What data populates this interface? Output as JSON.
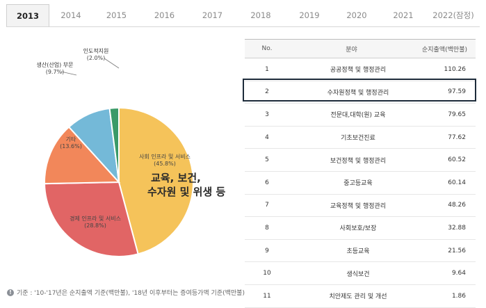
{
  "tabs": [
    {
      "label": "2013",
      "active": true
    },
    {
      "label": "2014",
      "active": false
    },
    {
      "label": "2015",
      "active": false
    },
    {
      "label": "2016",
      "active": false
    },
    {
      "label": "2017",
      "active": false
    },
    {
      "label": "2018",
      "active": false
    },
    {
      "label": "2019",
      "active": false
    },
    {
      "label": "2020",
      "active": false
    },
    {
      "label": "2021",
      "active": false
    },
    {
      "label": "2022(잠정)",
      "active": false
    }
  ],
  "chart_data": [
    {
      "type": "pie",
      "slices": [
        {
          "label": "사회 인프라 및 서비스",
          "value": 45.8,
          "display": "(45.8%)",
          "color": "#f5c35a"
        },
        {
          "label": "경제 인프라 및 서비스",
          "value": 28.8,
          "display": "(28.8%)",
          "color": "#e16565"
        },
        {
          "label": "기타",
          "value": 13.6,
          "display": "(13.6%)",
          "color": "#f2875a"
        },
        {
          "label": "생산(산업) 부문",
          "value": 9.7,
          "display": "(9.7%)",
          "color": "#74b9d8"
        },
        {
          "label": "인도적지원",
          "value": 2.0,
          "display": "(2.0%)",
          "color": "#3a9a68"
        }
      ],
      "annotation": [
        "교육, 보건,",
        "수자원 및 위생 등"
      ]
    },
    {
      "type": "table",
      "columns": [
        "No.",
        "분야",
        "순지출액(백만불)"
      ],
      "rows": [
        {
          "no": "1",
          "field": "공공정책 및 행정관리",
          "amount": "110.26"
        },
        {
          "no": "2",
          "field": "수자원정책 및 행정관리",
          "amount": "97.59",
          "highlight": true
        },
        {
          "no": "3",
          "field": "전문대,대학(원) 교육",
          "amount": "79.65"
        },
        {
          "no": "4",
          "field": "기초보건진료",
          "amount": "77.62"
        },
        {
          "no": "5",
          "field": "보건정책 및 행정관리",
          "amount": "60.52"
        },
        {
          "no": "6",
          "field": "중고등교육",
          "amount": "60.14"
        },
        {
          "no": "7",
          "field": "교육정책 및 행정관리",
          "amount": "48.26"
        },
        {
          "no": "8",
          "field": "사회보호/보장",
          "amount": "32.88"
        },
        {
          "no": "9",
          "field": "초등교육",
          "amount": "21.56"
        },
        {
          "no": "10",
          "field": "생식보건",
          "amount": "9.64"
        },
        {
          "no": "11",
          "field": "치안제도 관리 및 개선",
          "amount": "1.86"
        }
      ]
    }
  ],
  "footnote": {
    "icon": "info-icon",
    "text": "기준 : '10-'17년은 순지출액 기준(백만불), '18년 이후부터는 증여등가액 기준(백만불)"
  }
}
